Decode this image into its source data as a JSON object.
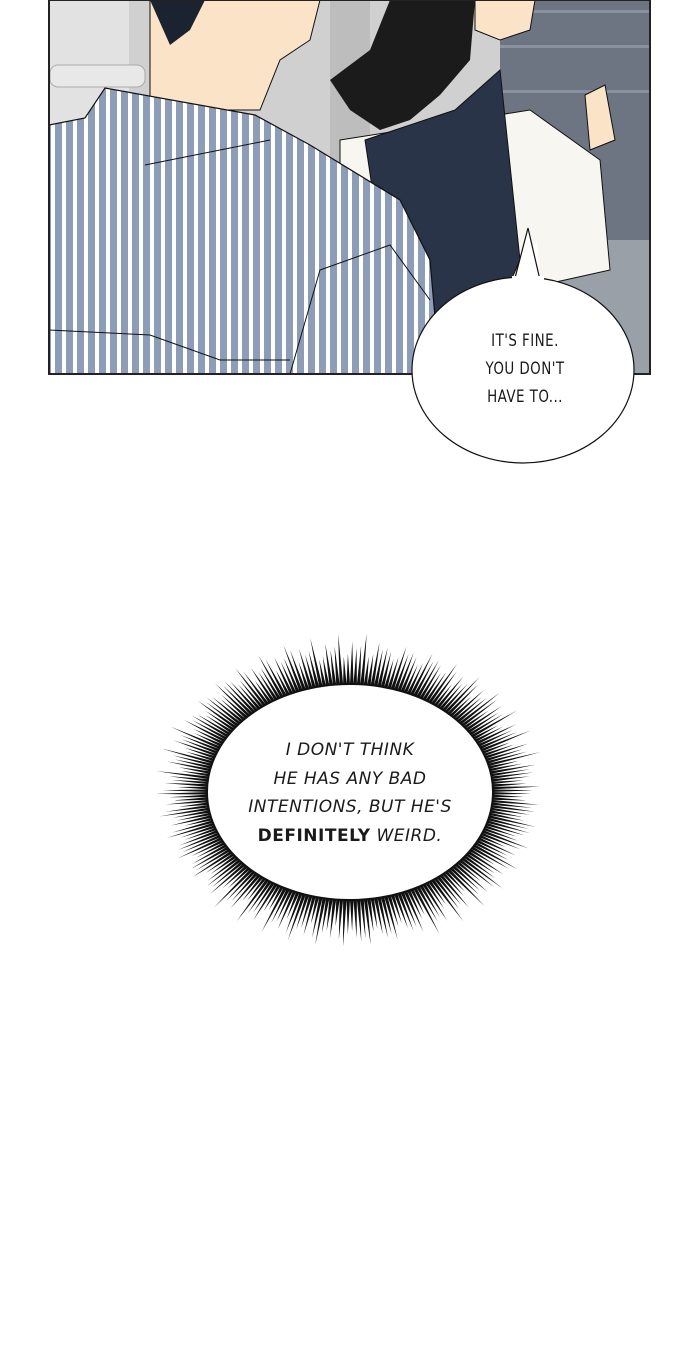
{
  "panel": {
    "colors": {
      "shirt_stripe": "#8d9db8",
      "vest": "#2a3448",
      "hair": "#1b1b1b",
      "skin": "#fbe3c8",
      "background_wall": "#c9c9c9",
      "background_door": "#6d7583"
    }
  },
  "bubbles": [
    {
      "type": "speech",
      "lines": [
        "IT'S FINE.",
        "YOU DON'T",
        "HAVE TO..."
      ]
    },
    {
      "type": "spiky-thought",
      "lines": [
        "I DON'T THINK",
        "HE HAS ANY BAD",
        "INTENTIONS, BUT HE'S"
      ],
      "emphasis": "DEFINITELY",
      "last_line_rest": " WEIRD."
    }
  ]
}
